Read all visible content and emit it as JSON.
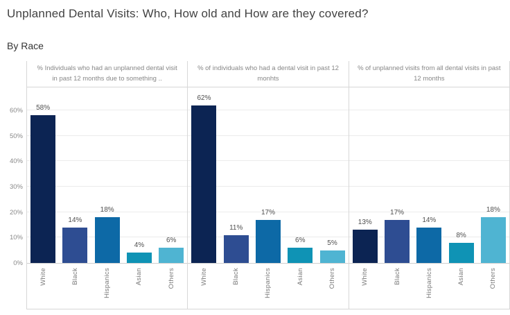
{
  "title": "Unplanned Dental Visits: Who, How old and How are they covered?",
  "subtitle": "By Race",
  "chart_data": {
    "type": "bar",
    "categories": [
      "White",
      "Black",
      "Hispanics",
      "Asian",
      "Others"
    ],
    "bar_colors": [
      "#0c2453",
      "#2e4d92",
      "#0d69a6",
      "#0f93b5",
      "#4fb4d2"
    ],
    "y_ticks": [
      "0%",
      "10%",
      "20%",
      "30%",
      "40%",
      "50%",
      "60%"
    ],
    "ylim": [
      0,
      69
    ],
    "grid": true,
    "legend": "none",
    "value_suffix": "%",
    "panels": [
      {
        "header": "% Individuals who had an unplanned dental visit in past 12 months due to something ..",
        "values": [
          58,
          14,
          18,
          4,
          6
        ]
      },
      {
        "header": "% of individuals who had a dental visit in past 12 monhts",
        "values": [
          62,
          11,
          17,
          6,
          5
        ]
      },
      {
        "header": "% of unplanned visits from all dental visits in past 12 months",
        "values": [
          13,
          17,
          14,
          8,
          18
        ]
      }
    ]
  }
}
